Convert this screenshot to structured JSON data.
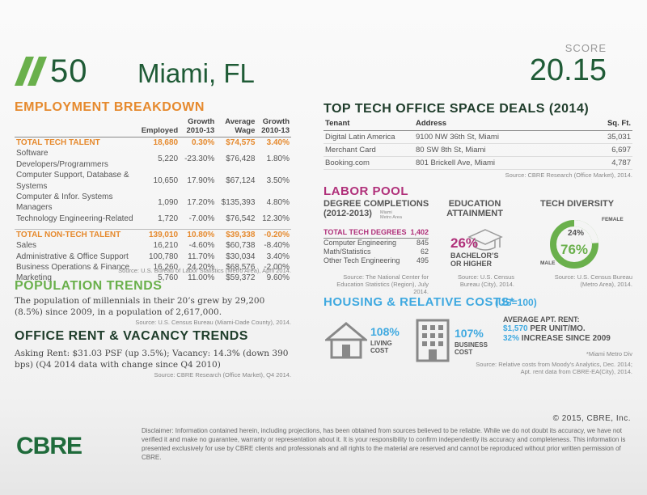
{
  "header": {
    "rank": "50",
    "city": "Miami, FL",
    "score_label": "SCORE",
    "score": "20.15"
  },
  "employment": {
    "title": "EMPLOYMENT BREAKDOWN",
    "columns": {
      "employed": "Employed",
      "growth1": "Growth",
      "growth1b": "2010-13",
      "wage1": "Average",
      "wage2": "Wage",
      "growth2": "Growth",
      "growth2b": "2010-13"
    },
    "tech_total": [
      "TOTAL TECH TALENT",
      "18,680",
      "0.30%",
      "$74,575",
      "3.40%"
    ],
    "tech_rows": [
      [
        "Software Developers/Programmers",
        "5,220",
        "-23.30%",
        "$76,428",
        "1.80%"
      ],
      [
        "Computer Support, Database & Systems",
        "10,650",
        "17.90%",
        "$67,124",
        "3.50%"
      ],
      [
        "Computer & Infor. Systems Managers",
        "1,090",
        "17.20%",
        "$135,393",
        "4.80%"
      ],
      [
        "Technology Engineering-Related",
        "1,720",
        "-7.00%",
        "$76,542",
        "12.30%"
      ]
    ],
    "nontech_total": [
      "TOTAL NON-TECH TALENT",
      "139,010",
      "10.80%",
      "$39,338",
      "-0.20%"
    ],
    "nontech_rows": [
      [
        "Sales",
        "16,210",
        "-4.60%",
        "$60,738",
        "-8.40%"
      ],
      [
        "Administrative & Office Support",
        "100,780",
        "11.70%",
        "$30,034",
        "3.40%"
      ],
      [
        "Business Operations & Finance",
        "16,260",
        "24.20%",
        "$68,576",
        "-2.00%"
      ],
      [
        "Marketing",
        "5,760",
        "11.00%",
        "$59,372",
        "9.60%"
      ]
    ],
    "source": "Source: U.S. Bureau of Labor Statistics (Metro Area), April 2014."
  },
  "population": {
    "title": "POPULATION TRENDS",
    "text": "The population of millennials in their 20’s grew by 29,200 (8.5%) since 2009, in a population of 2,617,000.",
    "source": "Source: U.S. Census Bureau (Miami-Dade County), 2014."
  },
  "office": {
    "title": "OFFICE RENT & VACANCY TRENDS",
    "text": "Asking Rent: $31.03 PSF (up 3.5%); Vacancy: 14.3% (down 390 bps) (Q4 2014 data with change since Q4 2010)",
    "source": "Source: CBRE Research (Office Market), Q4 2014."
  },
  "deals": {
    "title": "TOP TECH OFFICE SPACE DEALS (2014)",
    "headers": [
      "Tenant",
      "Address",
      "Sq. Ft."
    ],
    "rows": [
      [
        "Digital Latin America",
        "9100 NW 36th St, Miami",
        "35,031"
      ],
      [
        "Merchant Card",
        "80 SW 8th St, Miami",
        "6,697"
      ],
      [
        "Booking.com",
        "801 Brickell Ave, Miami",
        "4,787"
      ]
    ],
    "source": "Source: CBRE Research (Office Market), 2014."
  },
  "labor": {
    "title": "LABOR POOL",
    "degree_title": "DEGREE COMPLETIONS",
    "degree_years": "(2012-2013)",
    "degree_area": "Miami Metro Area",
    "degree_total": [
      "TOTAL TECH DEGREES",
      "1,402"
    ],
    "degree_rows": [
      [
        "Computer Engineering",
        "845"
      ],
      [
        "Math/Statistics",
        "62"
      ],
      [
        "Other Tech Engineering",
        "495"
      ]
    ],
    "degree_source": "Source: The National Center for Education Statistics (Region), July 2014.",
    "education_title1": "EDUCATION",
    "education_title2": "ATTAINMENT",
    "education_pct": "26%",
    "education_label1": "BACHELOR’S",
    "education_label2": "OR HIGHER",
    "education_source": "Source: U.S. Census Bureau (City), 2014.",
    "diversity_title": "TECH DIVERSITY",
    "female_label": "FEMALE",
    "female_pct": "24%",
    "male_label": "MALE",
    "male_pct": "76%",
    "female_fraction": 0.24,
    "diversity_source": "Source: U.S. Census Bureau (Metro Area), 2014."
  },
  "housing": {
    "title": "HOUSING & RELATIVE COSTS*",
    "us_note": "(US=100)",
    "living_val": "108%",
    "living_label1": "LIVING",
    "living_label2": "COST",
    "business_val": "107%",
    "business_label1": "BUSINESS",
    "business_label2": "COST",
    "rent_title": "AVERAGE APT. RENT:",
    "rent_value": "$1,570",
    "rent_unit": "PER UNIT/MO.",
    "rent_increase_pct": "32%",
    "rent_increase_text": "INCREASE SINCE 2009",
    "miami_note": "*Miami Metro Div",
    "source": "Source: Relative costs from Moody’s Analytics, Dec. 2014; Apt. rent data from CBRE-EA(City), 2014."
  },
  "footer": {
    "copyright": "© 2015, CBRE, Inc.",
    "disclaimer": "Disclaimer: Information contained herein, including projections, has been obtained from sources believed to be reliable. While we do not doubt its accuracy, we have not verified it and make no guarantee, warranty or representation about it. It is your responsibility to confirm independently its accuracy and completeness. This information is presented exclusively for use by CBRE clients and professionals and all rights to the material are reserved and cannot be reproduced without prior written permission of CBRE.",
    "logo": "CBRE"
  },
  "colors": {
    "brand_green": "#1f5b36",
    "orange": "#e68a2e",
    "lime": "#6ab04c",
    "magenta": "#b0307a",
    "blue": "#3fa9e0"
  }
}
